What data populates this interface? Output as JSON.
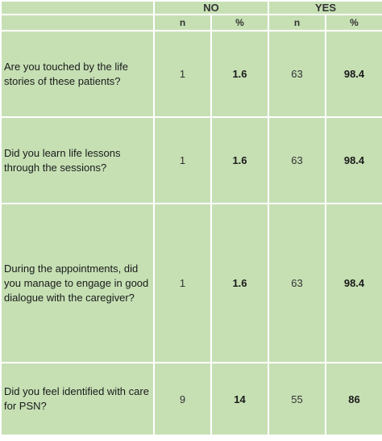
{
  "header": {
    "groups": [
      "NO",
      "YES"
    ],
    "subheaders": [
      "n",
      "%",
      "n",
      "%"
    ]
  },
  "rows": [
    {
      "question": "Are you touched by the life stories of these patients?",
      "no_n": "1",
      "no_pct": "1.6",
      "yes_n": "63",
      "yes_pct": "98.4"
    },
    {
      "question": "Did you learn life lessons through the sessions?",
      "no_n": "1",
      "no_pct": "1.6",
      "yes_n": "63",
      "yes_pct": "98.4"
    },
    {
      "question": "During the appointments, did you manage to engage in good dialogue with the caregiver?",
      "no_n": "1",
      "no_pct": "1.6",
      "yes_n": "63",
      "yes_pct": "98.4"
    },
    {
      "question": "Did you feel identified with care for PSN?",
      "no_n": "9",
      "no_pct": "14",
      "yes_n": "55",
      "yes_pct": "86"
    }
  ],
  "colors": {
    "cell_background": "#c6e0b4",
    "grid_lines": "#ffffff"
  }
}
